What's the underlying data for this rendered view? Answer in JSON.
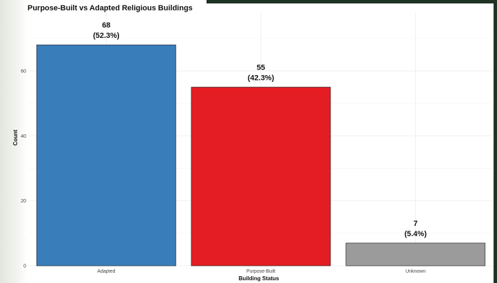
{
  "chart_data": {
    "type": "bar",
    "title": "Purpose-Built vs Adapted Religious Buildings",
    "xlabel": "Building Status",
    "ylabel": "Count",
    "categories": [
      "Adapted",
      "Purpose-Built",
      "Unknown"
    ],
    "values": [
      68,
      55,
      7
    ],
    "value_labels": [
      "68",
      "55",
      "7"
    ],
    "percent_labels": [
      "(52.3%)",
      "(42.3%)",
      "(5.4%)"
    ],
    "colors": [
      "#3a7dbb",
      "#e41c23",
      "#9b9b9b"
    ],
    "yticks": [
      "0",
      "20",
      "40",
      "60"
    ],
    "ylim": [
      0,
      78
    ],
    "grid": true,
    "legend": "none"
  }
}
